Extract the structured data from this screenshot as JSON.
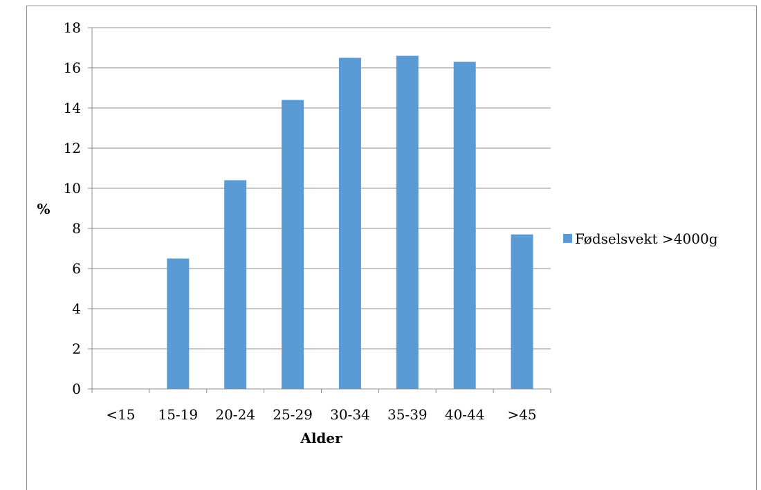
{
  "chart_data": {
    "type": "bar",
    "categories": [
      "<15",
      "15-19",
      "20-24",
      "25-29",
      "30-34",
      "35-39",
      "40-44",
      ">45"
    ],
    "series": [
      {
        "name": "Fødselsvekt >4000g",
        "values": [
          0,
          6.5,
          10.4,
          14.4,
          16.5,
          16.6,
          16.3,
          7.7
        ],
        "color": "#5b9bd5"
      }
    ],
    "title": "",
    "xlabel": "Alder",
    "ylabel": "%",
    "ylim": [
      0,
      18
    ],
    "yticks": [
      0,
      2,
      4,
      6,
      8,
      10,
      12,
      14,
      16,
      18
    ],
    "grid": true,
    "legend_position": "right"
  }
}
